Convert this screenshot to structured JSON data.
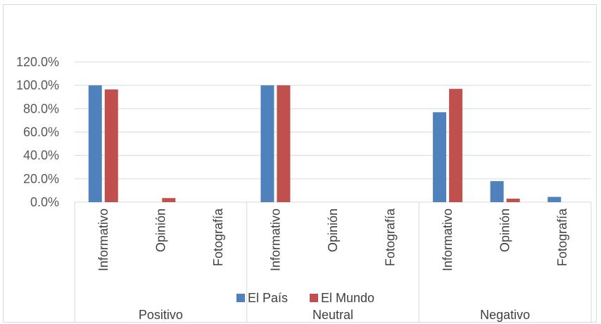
{
  "chart_data": {
    "type": "bar",
    "groups": [
      {
        "label": "Positivo",
        "categories": [
          "Informativo",
          "Opinión",
          "Fotografía"
        ]
      },
      {
        "label": "Neutral",
        "categories": [
          "Informativo",
          "Opinión",
          "Fotografía"
        ]
      },
      {
        "label": "Negativo",
        "categories": [
          "Informativo",
          "Opinión",
          "Fotografía"
        ]
      }
    ],
    "series": [
      {
        "name": "El País",
        "color": "#4f81bd",
        "values": [
          100.0,
          0.0,
          0.0,
          100.0,
          0.0,
          0.0,
          77.0,
          18.0,
          4.5
        ]
      },
      {
        "name": "El Mundo",
        "color": "#c0504d",
        "values": [
          96.5,
          3.5,
          0.0,
          100.0,
          0.0,
          0.0,
          97.0,
          3.0,
          0.0
        ]
      }
    ],
    "ylim": [
      0,
      120
    ],
    "yticks": [
      0,
      20,
      40,
      60,
      80,
      100,
      120
    ],
    "ytick_labels": [
      "0.0%",
      "20.0%",
      "40.0%",
      "60.0%",
      "80.0%",
      "100.0%",
      "120.0%"
    ],
    "grid": true,
    "legend_position": "bottom",
    "title": "",
    "xlabel": "",
    "ylabel": ""
  }
}
